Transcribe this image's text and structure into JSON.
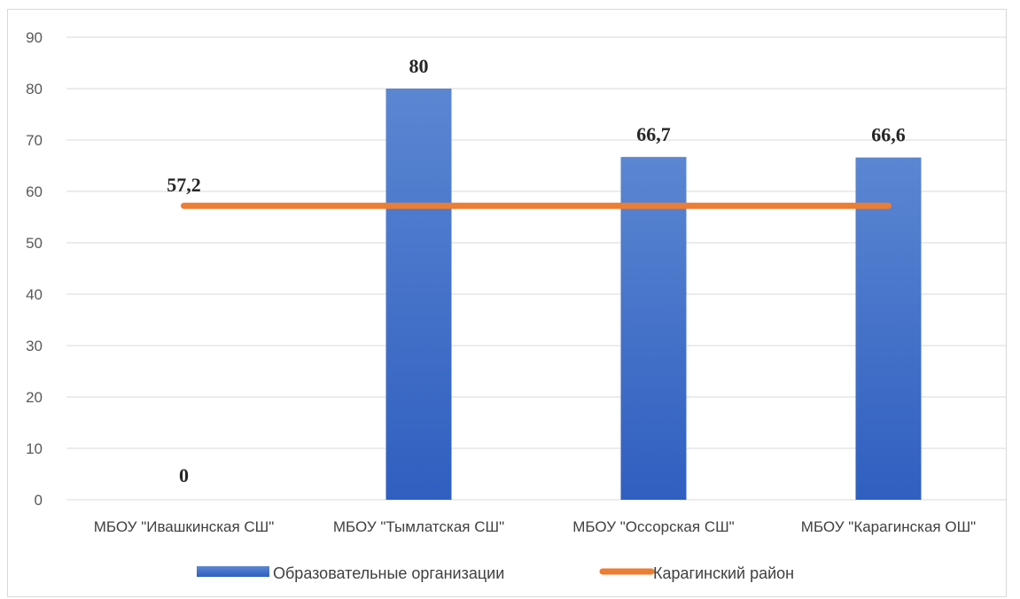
{
  "chart_data": {
    "type": "bar",
    "categories": [
      "МБОУ \"Ивашкинская СШ\"",
      "МБОУ \"Тымлатская СШ\"",
      "МБОУ \"Оссорская СШ\"",
      "МБОУ \"Карагинская ОШ\""
    ],
    "series": [
      {
        "name": "Образовательные организации",
        "kind": "bar",
        "color": "#4472c4",
        "values": [
          0,
          80,
          66.7,
          66.6
        ],
        "labels": [
          "0",
          "80",
          "66,7",
          "66,6"
        ]
      },
      {
        "name": "Карагинский район",
        "kind": "line",
        "color": "#ed7d31",
        "values": [
          57.2,
          57.2,
          57.2,
          57.2
        ],
        "labels": [
          "57,2",
          "",
          "",
          ""
        ]
      }
    ],
    "ylim": [
      0,
      90
    ],
    "yticks": [
      0,
      10,
      20,
      30,
      40,
      50,
      60,
      70,
      80,
      90
    ],
    "grid": true,
    "legend_position": "bottom",
    "title": "",
    "xlabel": "",
    "ylabel": ""
  }
}
